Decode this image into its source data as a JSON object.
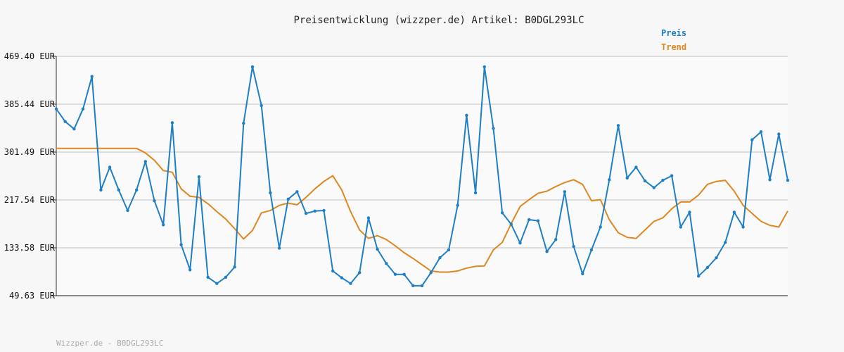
{
  "chart_data": {
    "type": "line",
    "title": "Preisentwicklung (wizzper.de) Artikel: B0DGL293LC",
    "xlabel": "",
    "ylabel": "",
    "ylim": [
      49.63,
      469.4
    ],
    "y_ticks": [
      "469.40 EUR",
      "385.44 EUR",
      "301.49 EUR",
      "217.54 EUR",
      "133.58 EUR",
      "49.63 EUR"
    ],
    "y_tick_values": [
      469.4,
      385.44,
      301.49,
      217.54,
      133.58,
      49.63
    ],
    "grid": true,
    "legend_position": "top-right",
    "x": [
      0,
      1,
      2,
      3,
      4,
      5,
      6,
      7,
      8,
      9,
      10,
      11,
      12,
      13,
      14,
      15,
      16,
      17,
      18,
      19,
      20,
      21,
      22,
      23,
      24,
      25,
      26,
      27,
      28,
      29,
      30,
      31,
      32,
      33,
      34,
      35,
      36,
      37,
      38,
      39,
      40,
      41,
      42,
      43,
      44,
      45,
      46,
      47,
      48,
      49,
      50,
      51,
      52,
      53,
      54,
      55,
      56,
      57,
      58,
      59,
      60,
      61,
      62,
      63,
      64,
      65,
      66,
      67,
      68,
      69,
      70,
      71,
      72,
      73,
      74,
      75,
      76,
      77,
      78,
      79,
      80,
      81,
      82
    ],
    "series": [
      {
        "name": "Preis",
        "color": "#1f7fc4",
        "values": [
          377,
          355,
          342,
          377,
          434,
          235,
          275,
          235,
          199,
          235,
          285,
          216,
          174,
          353,
          139,
          95,
          258,
          82,
          71,
          82,
          100,
          352,
          451,
          383,
          230,
          133,
          219,
          232,
          194,
          198,
          199,
          93,
          81,
          71,
          90,
          186,
          131,
          106,
          87,
          87,
          67,
          67,
          90,
          116,
          130,
          208,
          366,
          230,
          451,
          343,
          195,
          175,
          142,
          183,
          181,
          127,
          148,
          232,
          136,
          88,
          130,
          170,
          253,
          348,
          256,
          275,
          251,
          239,
          252,
          260,
          170,
          196,
          84,
          99,
          116,
          143,
          196,
          170,
          323,
          337,
          253,
          333,
          252
        ]
      },
      {
        "name": "Trend",
        "color": "#dd8822",
        "values": [
          308,
          308,
          308,
          308,
          308,
          308,
          308,
          308,
          308,
          308,
          300,
          287,
          269,
          266,
          237,
          224,
          222,
          211,
          197,
          184,
          167,
          149,
          164,
          195,
          199,
          208,
          212,
          209,
          222,
          237,
          250,
          260,
          235,
          197,
          165,
          150,
          155,
          148,
          137,
          125,
          115,
          104,
          93,
          91,
          91,
          93,
          98,
          101,
          102,
          130,
          143,
          176,
          206,
          218,
          229,
          233,
          241,
          248,
          253,
          245,
          216,
          218,
          183,
          160,
          152,
          150,
          165,
          180,
          186,
          202,
          214,
          214,
          226,
          245,
          250,
          252,
          233,
          208,
          194,
          180,
          173,
          170,
          198
        ]
      }
    ]
  },
  "footer": "Wizzper.de - B0DGL293LC"
}
